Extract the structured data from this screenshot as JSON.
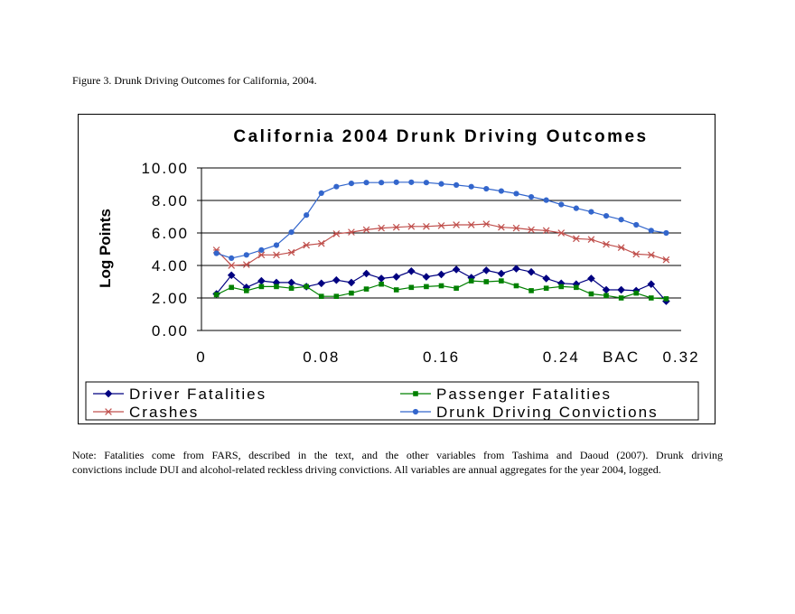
{
  "figure_caption": "Figure 3.  Drunk Driving Outcomes for California, 2004.",
  "note": {
    "line1": "Note: Fatalities come from FARS, described in the text, and the other variables from Tashima and Daoud (2007).  Drunk driving",
    "line2": "convictions include DUI and alcohol-related reckless driving convictions.  All variables are annual aggregates for the year 2004, logged."
  },
  "chart_data": {
    "type": "line",
    "title": "California 2004 Drunk Driving Outcomes",
    "ylabel": "Log Points",
    "xlabel": "BAC",
    "xlim": [
      0,
      0.32
    ],
    "ylim": [
      0,
      10
    ],
    "x_ticks": [
      "0",
      "0.08",
      "0.16",
      "0.24",
      "0.32"
    ],
    "y_ticks": [
      "0.00",
      "2.00",
      "4.00",
      "6.00",
      "8.00",
      "10.00"
    ],
    "grid": "horizontal",
    "legend_position": "bottom",
    "x": [
      0.01,
      0.02,
      0.03,
      0.04,
      0.05,
      0.06,
      0.07,
      0.08,
      0.09,
      0.1,
      0.11,
      0.12,
      0.13,
      0.14,
      0.15,
      0.16,
      0.17,
      0.18,
      0.19,
      0.2,
      0.21,
      0.22,
      0.23,
      0.24,
      0.25,
      0.26,
      0.27,
      0.28,
      0.29,
      0.3,
      0.31
    ],
    "series": [
      {
        "name": "Driver Fatalities",
        "color": "#000080",
        "marker": "diamond",
        "values": [
          2.25,
          3.4,
          2.65,
          3.05,
          2.95,
          2.95,
          2.7,
          2.9,
          3.1,
          2.95,
          3.5,
          3.2,
          3.3,
          3.65,
          3.3,
          3.45,
          3.75,
          3.25,
          3.7,
          3.5,
          3.8,
          3.6,
          3.2,
          2.9,
          2.85,
          3.2,
          2.5,
          2.5,
          2.45,
          2.85,
          1.8
        ]
      },
      {
        "name": "Passenger Fatalities",
        "color": "#008000",
        "marker": "square",
        "values": [
          2.2,
          2.65,
          2.45,
          2.7,
          2.7,
          2.6,
          2.7,
          2.1,
          2.1,
          2.3,
          2.55,
          2.85,
          2.5,
          2.65,
          2.7,
          2.75,
          2.6,
          3.05,
          3.0,
          3.05,
          2.75,
          2.45,
          2.6,
          2.7,
          2.65,
          2.25,
          2.15,
          2.0,
          2.3,
          2.0,
          1.95
        ]
      },
      {
        "name": "Crashes",
        "color": "#c0504d",
        "marker": "star",
        "values": [
          4.95,
          4.0,
          4.05,
          4.65,
          4.65,
          4.8,
          5.25,
          5.35,
          5.95,
          6.05,
          6.2,
          6.3,
          6.35,
          6.4,
          6.4,
          6.45,
          6.5,
          6.5,
          6.55,
          6.35,
          6.3,
          6.2,
          6.15,
          6.0,
          5.65,
          5.6,
          5.3,
          5.1,
          4.7,
          4.65,
          4.35
        ]
      },
      {
        "name": "Drunk Driving Convictions",
        "color": "#3366cc",
        "marker": "circle",
        "values": [
          4.75,
          4.45,
          4.65,
          4.95,
          5.25,
          6.05,
          7.1,
          8.45,
          8.85,
          9.05,
          9.1,
          9.1,
          9.12,
          9.12,
          9.1,
          9.02,
          8.95,
          8.85,
          8.72,
          8.58,
          8.42,
          8.22,
          8.02,
          7.75,
          7.52,
          7.3,
          7.05,
          6.82,
          6.5,
          6.15,
          6.0
        ]
      }
    ]
  }
}
